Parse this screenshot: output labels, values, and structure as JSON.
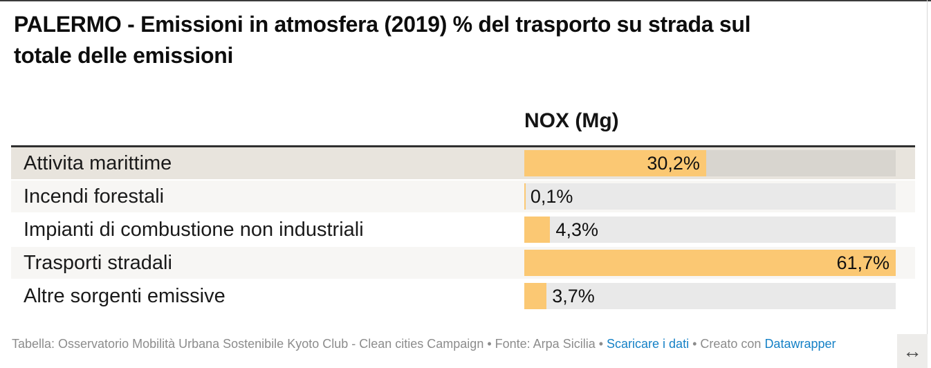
{
  "page": {
    "title_lines": [
      "PALERMO - Emissioni in atmosfera (2019) % del trasporto su strada sul",
      "totale delle emissioni"
    ],
    "column_header": "NOX (Mg)",
    "footer": {
      "parts": [
        {
          "text": "Tabella: Osservatorio Mobilità Urbana Sostenibile Kyoto Club - Clean cities Campaign • Fonte: Arpa Sicilia • ",
          "link": false
        },
        {
          "text": "Scaricare i dati",
          "link": true
        },
        {
          "text": " • Creato con ",
          "link": false
        },
        {
          "text": "Datawrapper",
          "link": true
        }
      ],
      "resize_icon": "↔"
    }
  },
  "rows": [
    {
      "label": "Attivita marittime",
      "value_label": "30,2%",
      "value": 30.2,
      "width_pct": 48.95,
      "value_inside": true,
      "variant": "highlight"
    },
    {
      "label": "Incendi forestali",
      "value_label": "0,1%",
      "value": 0.1,
      "width_pct": 0.16,
      "value_inside": false,
      "variant": "stripe"
    },
    {
      "label": "Impianti di combustione non industriali",
      "value_label": "4,3%",
      "value": 4.3,
      "width_pct": 6.97,
      "value_inside": false,
      "variant": "plain"
    },
    {
      "label": "Trasporti stradali",
      "value_label": "61,7%",
      "value": 61.7,
      "width_pct": 100,
      "value_inside": true,
      "variant": "stripe"
    },
    {
      "label": "Altre sorgenti emissive",
      "value_label": "3,7%",
      "value": 3.7,
      "width_pct": 6.0,
      "value_inside": false,
      "variant": "plain"
    }
  ],
  "chart_data": {
    "type": "bar",
    "orientation": "horizontal",
    "title": "PALERMO - Emissioni in atmosfera (2019) % del trasporto su strada sul totale delle emissioni",
    "column_header": "NOX (Mg)",
    "categories": [
      "Attivita marittime",
      "Incendi forestali",
      "Impianti di combustione non industriali",
      "Trasporti stradali",
      "Altre sorgenti emissive"
    ],
    "values": [
      30.2,
      0.1,
      4.3,
      61.7,
      3.7
    ],
    "value_labels": [
      "30,2%",
      "0,1%",
      "4,3%",
      "61,7%",
      "3,7%"
    ],
    "unit": "%",
    "xlim": [
      0,
      61.7
    ],
    "grid": false,
    "legend": "none",
    "source": "Arpa Sicilia",
    "table_credit": "Osservatorio Mobilità Urbana Sostenibile Kyoto Club - Clean cities Campaign"
  },
  "colors": {
    "accent": "#fbc873",
    "row_highlight": "#e8e4dd",
    "row_stripe": "#f7f6f4",
    "track": "#e9e9e9",
    "track_highlight": "#d8d5cf",
    "rule": "#2f2f2f",
    "link": "#1581c6",
    "footer_text": "#8c8c8c"
  }
}
